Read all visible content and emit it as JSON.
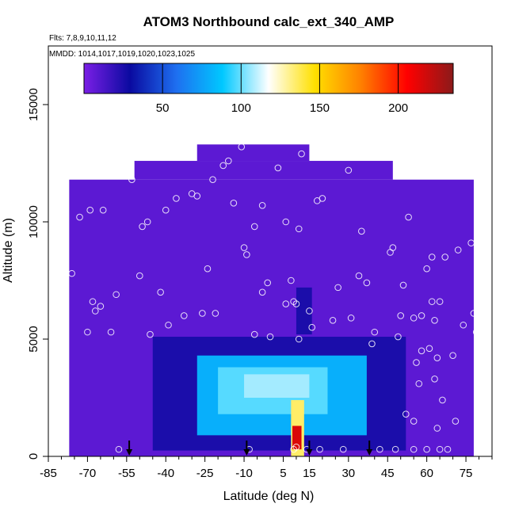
{
  "chart_data": {
    "type": "heatmap",
    "title": "ATOM3 Northbound calc_ext_340_AMP",
    "flights_label": "Flts: 7,8,9,10,11,12",
    "mmdd_label": "MMDD: 1014,1017,1019,1020,1023,1025",
    "xlabel": "Latitude (deg N)",
    "ylabel": "Altitude (m)",
    "xlim": [
      -85,
      85
    ],
    "ylim": [
      0,
      17500
    ],
    "x_ticks": [
      -85,
      -70,
      -55,
      -40,
      -25,
      -10,
      5,
      15,
      30,
      45,
      60,
      75
    ],
    "y_ticks": [
      0,
      5000,
      10000,
      15000
    ],
    "colorbar": {
      "min": 0,
      "max": 235,
      "ticks": [
        50,
        100,
        150,
        200
      ],
      "colors": [
        "#7b1fe6",
        "#0a0aa0",
        "#1e6ff0",
        "#00c8ff",
        "#ffffff",
        "#ffe000",
        "#ff8000",
        "#ff0000",
        "#8b1a1a"
      ]
    },
    "regions": [
      {
        "lat": [
          -77,
          78
        ],
        "alt": [
          0,
          11800
        ],
        "value": 8
      },
      {
        "lat": [
          -52,
          47
        ],
        "alt": [
          11800,
          12600
        ],
        "value": 8
      },
      {
        "lat": [
          -28,
          15
        ],
        "alt": [
          12600,
          13300
        ],
        "value": 8
      },
      {
        "lat": [
          -45,
          52
        ],
        "alt": [
          250,
          5100
        ],
        "value": 25
      },
      {
        "lat": [
          -28,
          37
        ],
        "alt": [
          900,
          4300
        ],
        "value": 80
      },
      {
        "lat": [
          -20,
          22
        ],
        "alt": [
          1800,
          3800
        ],
        "value": 98
      },
      {
        "lat": [
          -10,
          15
        ],
        "alt": [
          2500,
          3500
        ],
        "value": 107
      },
      {
        "lat": [
          8,
          13
        ],
        "alt": [
          0,
          2400
        ],
        "value": 135
      },
      {
        "lat": [
          8.5,
          12
        ],
        "alt": [
          300,
          1300
        ],
        "value": 215
      },
      {
        "lat": [
          10,
          16
        ],
        "alt": [
          5200,
          7200
        ],
        "value": 25
      }
    ],
    "sample_points": [
      [
        -76,
        7800
      ],
      [
        -73,
        10200
      ],
      [
        -70,
        5300
      ],
      [
        -69,
        10500
      ],
      [
        -68,
        6600
      ],
      [
        -67,
        6200
      ],
      [
        -65,
        6400
      ],
      [
        -64,
        10500
      ],
      [
        -61,
        5300
      ],
      [
        -59,
        6900
      ],
      [
        -58,
        300
      ],
      [
        -53,
        11800
      ],
      [
        -50,
        7700
      ],
      [
        -49,
        9800
      ],
      [
        -47,
        10000
      ],
      [
        -46,
        5200
      ],
      [
        -42,
        7000
      ],
      [
        -40,
        10500
      ],
      [
        -39,
        5600
      ],
      [
        -36,
        11000
      ],
      [
        -33,
        6000
      ],
      [
        -30,
        11200
      ],
      [
        -28,
        11100
      ],
      [
        -26,
        6100
      ],
      [
        -24,
        8000
      ],
      [
        -22,
        11800
      ],
      [
        -21,
        6100
      ],
      [
        -18,
        12400
      ],
      [
        -16,
        12600
      ],
      [
        -14,
        10800
      ],
      [
        -11,
        13200
      ],
      [
        -10,
        8900
      ],
      [
        -9,
        8600
      ],
      [
        -8,
        300
      ],
      [
        -6,
        5200
      ],
      [
        -6,
        9800
      ],
      [
        -3,
        7000
      ],
      [
        -3,
        10700
      ],
      [
        -1,
        7400
      ],
      [
        0,
        5100
      ],
      [
        3,
        12300
      ],
      [
        6,
        6500
      ],
      [
        6,
        10000
      ],
      [
        8,
        7500
      ],
      [
        9,
        6600
      ],
      [
        10,
        6500
      ],
      [
        9,
        300
      ],
      [
        10,
        400
      ],
      [
        11,
        5000
      ],
      [
        11,
        9700
      ],
      [
        12,
        12900
      ],
      [
        14,
        300
      ],
      [
        15,
        6200
      ],
      [
        16,
        5500
      ],
      [
        18,
        10900
      ],
      [
        19,
        300
      ],
      [
        20,
        11000
      ],
      [
        24,
        5800
      ],
      [
        26,
        7200
      ],
      [
        28,
        300
      ],
      [
        30,
        12200
      ],
      [
        31,
        5900
      ],
      [
        34,
        7700
      ],
      [
        35,
        9600
      ],
      [
        37,
        7400
      ],
      [
        39,
        4800
      ],
      [
        40,
        5300
      ],
      [
        42,
        300
      ],
      [
        46,
        8700
      ],
      [
        47,
        8900
      ],
      [
        48,
        300
      ],
      [
        49,
        5100
      ],
      [
        50,
        6000
      ],
      [
        51,
        7300
      ],
      [
        52,
        1800
      ],
      [
        53,
        10200
      ],
      [
        54,
        12100
      ],
      [
        55,
        5900
      ],
      [
        55,
        300
      ],
      [
        56,
        4000
      ],
      [
        57,
        3100
      ],
      [
        58,
        4500
      ],
      [
        58,
        6000
      ],
      [
        60,
        8000
      ],
      [
        61,
        4600
      ],
      [
        62,
        6600
      ],
      [
        62,
        8500
      ],
      [
        63,
        3300
      ],
      [
        63,
        5800
      ],
      [
        64,
        4200
      ],
      [
        64,
        1200
      ],
      [
        65,
        6600
      ],
      [
        65,
        300
      ],
      [
        67,
        8500
      ],
      [
        68,
        300
      ],
      [
        70,
        4300
      ],
      [
        72,
        8800
      ],
      [
        74,
        5600
      ],
      [
        77,
        9100
      ],
      [
        78,
        6100
      ],
      [
        79,
        5300
      ],
      [
        80,
        400
      ],
      [
        55,
        1500
      ],
      [
        60,
        300
      ],
      [
        66,
        2400
      ],
      [
        71,
        1500
      ]
    ],
    "arrows_lat": [
      -54,
      -9,
      15,
      38
    ]
  }
}
